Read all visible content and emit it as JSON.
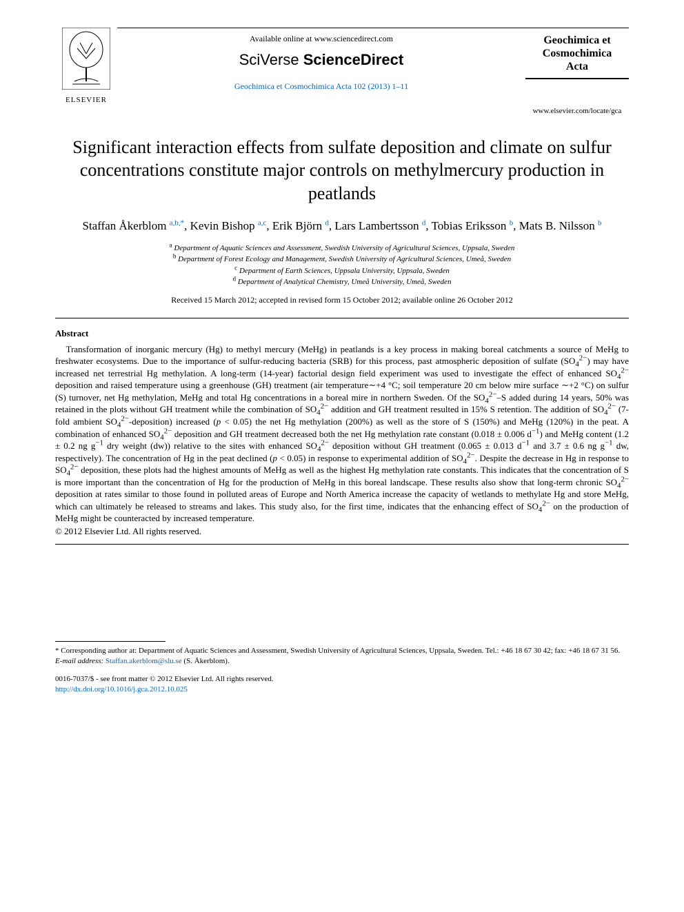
{
  "header": {
    "elsevier_label": "ELSEVIER",
    "available_online": "Available online at www.sciencedirect.com",
    "sciverse_prefix": "SciVerse",
    "sciverse_suffix": "ScienceDirect",
    "journal_ref": "Geochimica et Cosmochimica Acta 102 (2013) 1–11",
    "journal_name_line1": "Geochimica et",
    "journal_name_line2": "Cosmochimica",
    "journal_name_line3": "Acta",
    "journal_url": "www.elsevier.com/locate/gca"
  },
  "title": "Significant interaction effects from sulfate deposition and climate on sulfur concentrations constitute major controls on methylmercury production in peatlands",
  "authors": [
    {
      "name": "Staffan Åkerblom",
      "marks": "a,b,*"
    },
    {
      "name": "Kevin Bishop",
      "marks": "a,c"
    },
    {
      "name": "Erik Björn",
      "marks": "d"
    },
    {
      "name": "Lars Lambertsson",
      "marks": "d"
    },
    {
      "name": "Tobias Eriksson",
      "marks": "b"
    },
    {
      "name": "Mats B. Nilsson",
      "marks": "b"
    }
  ],
  "affiliations": [
    {
      "mark": "a",
      "text": "Department of Aquatic Sciences and Assessment, Swedish University of Agricultural Sciences, Uppsala, Sweden"
    },
    {
      "mark": "b",
      "text": "Department of Forest Ecology and Management, Swedish University of Agricultural Sciences, Umeå, Sweden"
    },
    {
      "mark": "c",
      "text": "Department of Earth Sciences, Uppsala University, Uppsala, Sweden"
    },
    {
      "mark": "d",
      "text": "Department of Analytical Chemistry, Umeå University, Umeå, Sweden"
    }
  ],
  "dates": "Received 15 March 2012; accepted in revised form 15 October 2012; available online 26 October 2012",
  "abstract": {
    "heading": "Abstract",
    "body_html": "Transformation of inorganic mercury (Hg) to methyl mercury (MeHg) in peatlands is a key process in making boreal catchments a source of MeHg to freshwater ecosystems. Due to the importance of sulfur-reducing bacteria (SRB) for this process, past atmospheric deposition of sulfate (SO<sub>4</sub><sup>2−</sup>) may have increased net terrestrial Hg methylation. A long-term (14-year) factorial design field experiment was used to investigate the effect of enhanced SO<sub>4</sub><sup>2−</sup> deposition and raised temperature using a greenhouse (GH) treatment (air temperature∼+4 °C; soil temperature 20 cm below mire surface ∼+2 °C) on sulfur (S) turnover, net Hg methylation, MeHg and total Hg concentrations in a boreal mire in northern Sweden. Of the SO<sub>4</sub><sup>2−</sup>–S added during 14 years, 50% was retained in the plots without GH treatment while the combination of SO<sub>4</sub><sup>2−</sup> addition and GH treatment resulted in 15% S retention. The addition of SO<sub>4</sub><sup>2−</sup> (7-fold ambient SO<sub>4</sub><sup>2−</sup>-deposition) increased (<i>p</i> &lt; 0.05) the net Hg methylation (200%) as well as the store of S (150%) and MeHg (120%) in the peat. A combination of enhanced SO<sub>4</sub><sup>2−</sup> deposition and GH treatment decreased both the net Hg methylation rate constant (0.018 ± 0.006 d<sup>−1</sup>) and MeHg content (1.2 ± 0.2 ng g<sup>−1</sup> dry weight (dw)) relative to the sites with enhanced SO<sub>4</sub><sup>2−</sup> deposition without GH treatment (0.065 ± 0.013 d<sup>−1</sup> and 3.7 ± 0.6 ng g<sup>−1</sup> dw, respectively). The concentration of Hg in the peat declined (<i>p</i> &lt; 0.05) in response to experimental addition of SO<sub>4</sub><sup>2−</sup>. Despite the decrease in Hg in response to SO<sub>4</sub><sup>2−</sup> deposition, these plots had the highest amounts of MeHg as well as the highest Hg methylation rate constants. This indicates that the concentration of S is more important than the concentration of Hg for the production of MeHg in this boreal landscape. These results also show that long-term chronic SO<sub>4</sub><sup>2−</sup> deposition at rates similar to those found in polluted areas of Europe and North America increase the capacity of wetlands to methylate Hg and store MeHg, which can ultimately be released to streams and lakes. This study also, for the first time, indicates that the enhancing effect of SO<sub>4</sub><sup>2−</sup> on the production of MeHg might be counteracted by increased temperature.",
    "copyright": "© 2012 Elsevier Ltd. All rights reserved."
  },
  "footnote": {
    "corresponding": "* Corresponding author at: Department of Aquatic Sciences and Assessment, Swedish University of Agricultural Sciences, Uppsala, Sweden. Tel.: +46 18 67 30 42; fax: +46 18 67 31 56.",
    "email_label": "E-mail address:",
    "email": "Staffan.akerblom@slu.se",
    "email_suffix": "(S. Åkerblom)."
  },
  "footer": {
    "issn_line": "0016-7037/$ - see front matter © 2012 Elsevier Ltd. All rights reserved.",
    "doi": "http://dx.doi.org/10.1016/j.gca.2012.10.025"
  },
  "colors": {
    "link": "#0066cc",
    "text": "#000000",
    "background": "#ffffff"
  },
  "typography": {
    "title_fontsize_pt": 20,
    "body_fontsize_pt": 10,
    "author_fontsize_pt": 13,
    "affiliation_fontsize_pt": 8,
    "font_family": "Times New Roman"
  }
}
